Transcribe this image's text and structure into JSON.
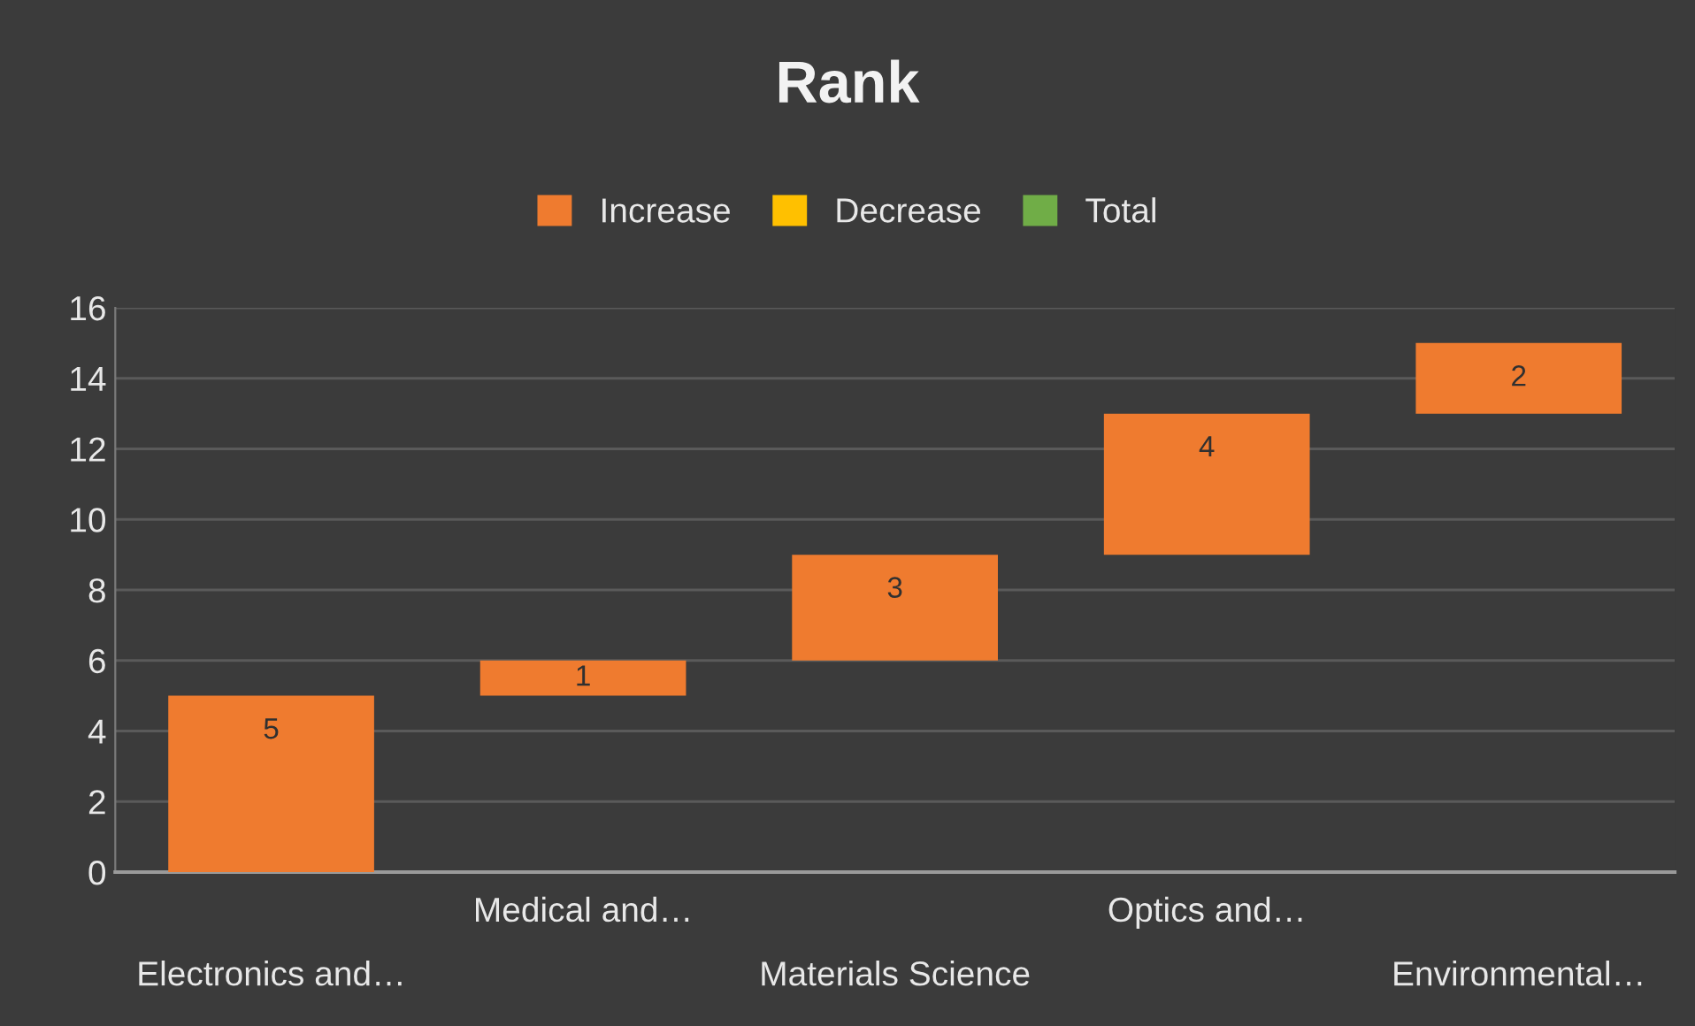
{
  "chart_data": {
    "type": "bar",
    "title": "Rank",
    "categories": [
      "Electronics and…",
      "Medical and…",
      "Materials Science",
      "Optics and…",
      "Environmental…"
    ],
    "series": [
      {
        "name": "Increase",
        "color": "#ef7b2f",
        "values": [
          5,
          1,
          3,
          4,
          2
        ],
        "base": [
          0,
          5,
          6,
          9,
          13
        ]
      },
      {
        "name": "Decrease",
        "color": "#ffc000",
        "values": [
          null,
          null,
          null,
          null,
          null
        ]
      },
      {
        "name": "Total",
        "color": "#70ad47",
        "values": [
          null,
          null,
          null,
          null,
          null
        ]
      }
    ],
    "ylim": [
      0,
      16
    ],
    "yticks": [
      0,
      2,
      4,
      6,
      8,
      10,
      12,
      14,
      16
    ],
    "grid": "y",
    "legend": "top",
    "data_labels": true
  }
}
